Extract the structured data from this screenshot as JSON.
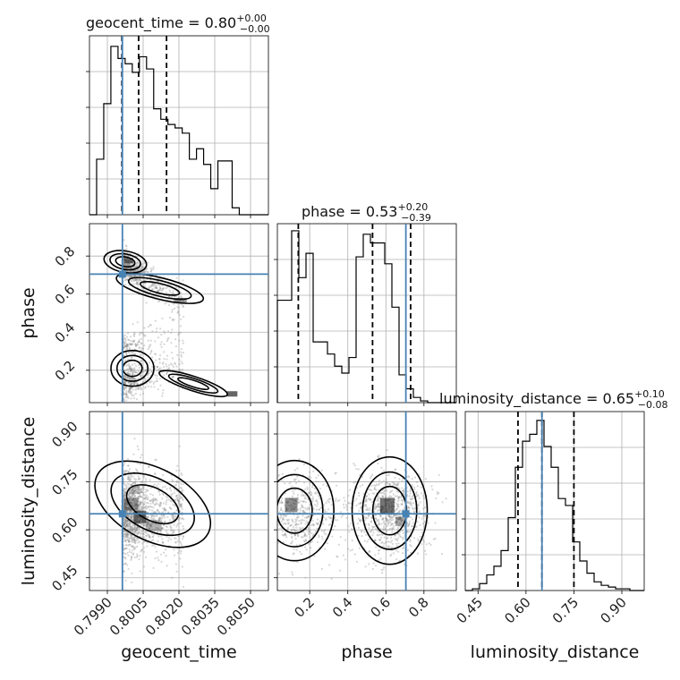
{
  "chart_data": {
    "type": "corner",
    "parameters": [
      "geocent_time",
      "phase",
      "luminosity_distance"
    ],
    "titles": [
      {
        "parameter": "geocent_time",
        "median": "0.80",
        "plus": "+0.00",
        "minus": "−0.00"
      },
      {
        "parameter": "phase",
        "median": "0.53",
        "plus": "+0.20",
        "minus": "−0.39"
      },
      {
        "parameter": "luminosity_distance",
        "median": "0.65",
        "plus": "+0.10",
        "minus": "−0.08"
      }
    ],
    "truths": {
      "geocent_time": 0.79963,
      "phase": 0.705,
      "luminosity_distance": 0.65
    },
    "ranges": {
      "geocent_time": [
        0.79825,
        0.80575
      ],
      "phase": [
        0.03,
        0.97
      ],
      "luminosity_distance": [
        0.41,
        0.97
      ]
    },
    "ticks": {
      "geocent_time": [
        "0.7990",
        "0.8005",
        "0.8020",
        "0.8035",
        "0.8050"
      ],
      "phase": [
        "0.2",
        "0.4",
        "0.6",
        "0.8"
      ],
      "luminosity_distance": [
        "0.45",
        "0.60",
        "0.75",
        "0.90"
      ]
    },
    "histograms": {
      "geocent_time": {
        "edges_start": 0.79825,
        "bin_width": 0.000299,
        "counts": [
          0,
          0.32,
          0.64,
          0.97,
          0.9,
          0.87,
          0.82,
          0.91,
          0.84,
          0.61,
          0.55,
          0.52,
          0.5,
          0.47,
          0.32,
          0.38,
          0.29,
          0.15,
          0.31,
          0.31,
          0.04,
          0,
          0,
          0,
          0
        ]
      },
      "phase": {
        "edges_start": 0.03,
        "bin_width": 0.0376,
        "counts": [
          0.59,
          0.59,
          0.99,
          0.72,
          0.86,
          0.35,
          0.35,
          0.28,
          0.21,
          0.17,
          0.26,
          0.84,
          0.97,
          0.92,
          0.92,
          0.8,
          0.55,
          0.16,
          0.08,
          0.03,
          0.01,
          0,
          0,
          0,
          0
        ]
      },
      "luminosity_distance": {
        "edges_start": 0.41,
        "bin_width": 0.0224,
        "counts": [
          0,
          0.01,
          0.04,
          0.09,
          0.14,
          0.23,
          0.42,
          0.71,
          0.86,
          0.9,
          0.98,
          0.83,
          0.71,
          0.53,
          0.49,
          0.28,
          0.17,
          0.1,
          0.05,
          0.03,
          0.02,
          0.01,
          0.01,
          0,
          0
        ]
      }
    },
    "quantiles": {
      "geocent_time": [
        0.79961,
        0.80031,
        0.80148
      ],
      "phase": [
        0.14,
        0.53,
        0.73
      ],
      "luminosity_distance": [
        0.575,
        0.65,
        0.75
      ]
    },
    "grid": true
  }
}
